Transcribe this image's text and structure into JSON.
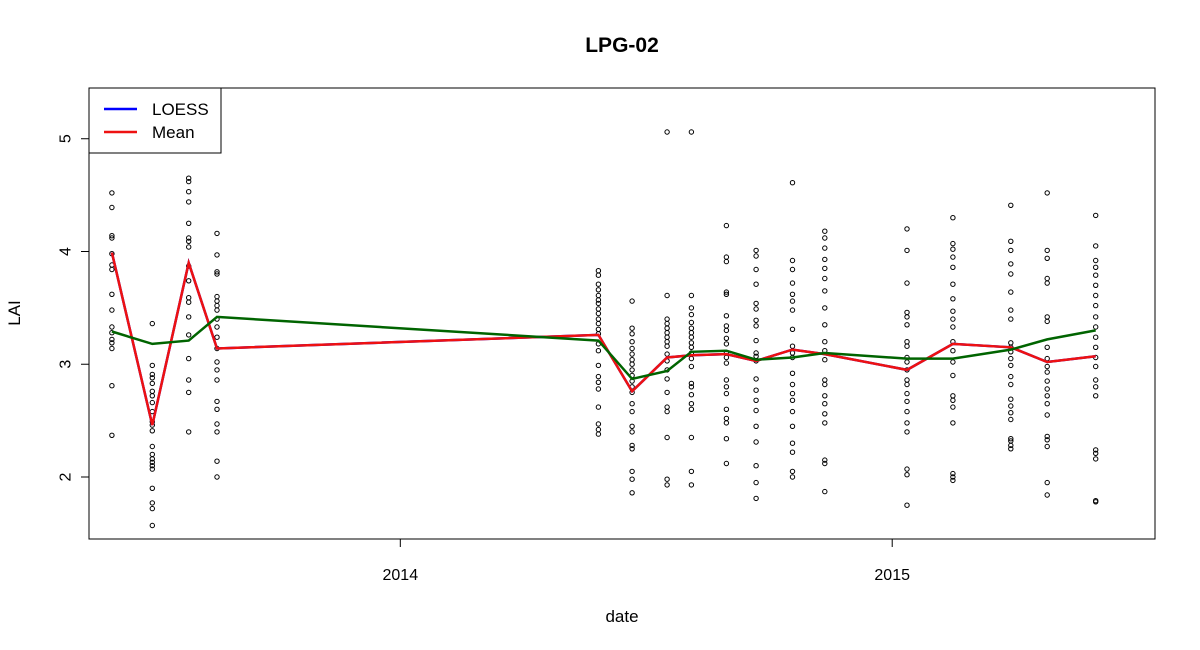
{
  "chart_data": {
    "type": "scatter",
    "title": "LPG-02",
    "xlabel": "date",
    "ylabel": "LAI",
    "xlim": [
      "2013-05-15",
      "2015-07-15"
    ],
    "ylim": [
      1.45,
      5.45
    ],
    "x_ticks": [
      {
        "date": "2014-01-01",
        "label": "2014"
      },
      {
        "date": "2015-01-01",
        "label": "2015"
      }
    ],
    "y_ticks": [
      {
        "value": 2,
        "label": "2"
      },
      {
        "value": 3,
        "label": "3"
      },
      {
        "value": 4,
        "label": "4"
      },
      {
        "value": 5,
        "label": "5"
      }
    ],
    "grid": false,
    "legend": {
      "placement": "top-left",
      "entries": [
        {
          "label": "LOESS",
          "color": "#0000ff"
        },
        {
          "label": "Mean",
          "color": "#ee1111"
        }
      ]
    },
    "colors": {
      "loess": "#0000ff",
      "mean": "#ee1111",
      "trend": "#006400",
      "points": "#000000"
    },
    "groups": [
      {
        "date": "2013-06-01",
        "values": [
          4.52,
          4.39,
          4.14,
          4.12,
          3.98,
          3.88,
          3.84,
          3.62,
          3.48,
          3.33,
          3.28,
          3.22,
          3.19,
          3.14,
          2.81,
          2.37
        ]
      },
      {
        "date": "2013-07-01",
        "values": [
          3.36,
          2.99,
          2.91,
          2.88,
          2.83,
          2.76,
          2.72,
          2.66,
          2.58,
          2.49,
          2.46,
          2.41,
          2.27,
          2.2,
          2.16,
          2.13,
          2.1,
          2.07,
          1.9,
          1.77,
          1.72,
          1.57
        ]
      },
      {
        "date": "2013-07-28",
        "values": [
          4.65,
          4.62,
          4.53,
          4.44,
          4.25,
          4.12,
          4.09,
          4.04,
          3.87,
          3.74,
          3.59,
          3.55,
          3.42,
          3.26,
          3.05,
          2.86,
          2.75,
          2.4
        ]
      },
      {
        "date": "2013-08-18",
        "values": [
          4.16,
          3.97,
          3.82,
          3.8,
          3.6,
          3.56,
          3.52,
          3.48,
          3.4,
          3.33,
          3.24,
          3.14,
          3.02,
          2.95,
          2.86,
          2.67,
          2.6,
          2.47,
          2.4,
          2.14,
          2.0
        ]
      },
      {
        "date": "2014-05-28",
        "values": [
          3.83,
          3.79,
          3.71,
          3.66,
          3.61,
          3.57,
          3.54,
          3.49,
          3.45,
          3.4,
          3.36,
          3.31,
          3.27,
          3.18,
          3.12,
          2.99,
          2.89,
          2.84,
          2.78,
          2.62,
          2.47,
          2.42,
          2.38
        ]
      },
      {
        "date": "2014-06-22",
        "values": [
          3.56,
          3.32,
          3.27,
          3.2,
          3.14,
          3.09,
          3.04,
          3.0,
          2.95,
          2.9,
          2.85,
          2.8,
          2.75,
          2.65,
          2.58,
          2.45,
          2.4,
          2.28,
          2.25,
          2.05,
          1.98,
          1.86
        ]
      },
      {
        "date": "2014-07-18",
        "values": [
          5.06,
          3.61,
          3.4,
          3.36,
          3.32,
          3.28,
          3.24,
          3.2,
          3.16,
          3.09,
          3.03,
          2.95,
          2.87,
          2.75,
          2.62,
          2.58,
          2.35,
          1.98,
          1.93
        ]
      },
      {
        "date": "2014-08-05",
        "values": [
          5.06,
          3.61,
          3.5,
          3.44,
          3.37,
          3.32,
          3.28,
          3.24,
          3.19,
          3.15,
          3.1,
          3.05,
          2.98,
          2.83,
          2.8,
          2.73,
          2.65,
          2.6,
          2.35,
          2.05,
          1.93
        ]
      },
      {
        "date": "2014-08-31",
        "values": [
          4.23,
          3.95,
          3.91,
          3.64,
          3.62,
          3.43,
          3.34,
          3.3,
          3.23,
          3.18,
          3.1,
          3.06,
          3.01,
          2.86,
          2.8,
          2.74,
          2.6,
          2.52,
          2.48,
          2.34,
          2.12
        ]
      },
      {
        "date": "2014-09-22",
        "values": [
          4.01,
          3.96,
          3.84,
          3.71,
          3.54,
          3.49,
          3.39,
          3.34,
          3.21,
          3.1,
          3.07,
          3.03,
          2.87,
          2.77,
          2.68,
          2.59,
          2.45,
          2.31,
          2.1,
          1.95,
          1.81
        ]
      },
      {
        "date": "2014-10-19",
        "values": [
          4.61,
          3.92,
          3.84,
          3.72,
          3.62,
          3.56,
          3.48,
          3.31,
          3.16,
          3.1,
          3.06,
          2.92,
          2.82,
          2.74,
          2.68,
          2.58,
          2.45,
          2.3,
          2.22,
          2.05,
          2.0
        ]
      },
      {
        "date": "2014-11-12",
        "values": [
          4.18,
          4.12,
          4.03,
          3.93,
          3.85,
          3.76,
          3.65,
          3.5,
          3.35,
          3.2,
          3.12,
          3.04,
          2.86,
          2.82,
          2.72,
          2.65,
          2.56,
          2.48,
          2.15,
          2.12,
          1.87
        ]
      },
      {
        "date": "2015-01-12",
        "values": [
          4.2,
          4.01,
          3.72,
          3.46,
          3.42,
          3.35,
          3.2,
          3.16,
          3.06,
          3.02,
          2.95,
          2.86,
          2.82,
          2.74,
          2.67,
          2.58,
          2.48,
          2.4,
          2.07,
          2.02,
          1.75
        ]
      },
      {
        "date": "2015-02-15",
        "values": [
          4.3,
          4.07,
          4.02,
          3.95,
          3.86,
          3.71,
          3.58,
          3.47,
          3.4,
          3.33,
          3.2,
          3.12,
          3.02,
          2.9,
          2.72,
          2.68,
          2.62,
          2.48,
          2.03,
          2.0,
          1.97
        ]
      },
      {
        "date": "2015-03-30",
        "values": [
          4.41,
          4.09,
          4.01,
          3.89,
          3.8,
          3.64,
          3.48,
          3.4,
          3.19,
          3.15,
          3.11,
          3.05,
          2.99,
          2.89,
          2.82,
          2.69,
          2.63,
          2.57,
          2.51,
          2.34,
          2.32,
          2.28,
          2.25
        ]
      },
      {
        "date": "2015-04-26",
        "values": [
          4.52,
          4.01,
          3.94,
          3.76,
          3.72,
          3.42,
          3.38,
          3.15,
          3.05,
          2.98,
          2.93,
          2.85,
          2.78,
          2.72,
          2.65,
          2.55,
          2.36,
          2.33,
          2.27,
          1.95,
          1.84
        ]
      },
      {
        "date": "2015-06-01",
        "values": [
          4.32,
          4.05,
          3.92,
          3.86,
          3.79,
          3.7,
          3.61,
          3.52,
          3.42,
          3.33,
          3.24,
          3.15,
          3.06,
          2.98,
          2.86,
          2.8,
          2.72,
          2.24,
          2.21,
          2.16,
          1.79,
          1.78
        ]
      }
    ],
    "series": [
      {
        "name": "LOESS",
        "color": "#0000ff",
        "x": [
          "2013-06-01",
          "2013-07-01",
          "2013-07-28",
          "2013-08-18",
          "2014-05-28",
          "2014-06-22",
          "2014-07-18",
          "2014-08-05",
          "2014-08-31",
          "2014-09-22",
          "2014-10-19",
          "2014-11-12",
          "2015-01-12",
          "2015-02-15",
          "2015-03-30",
          "2015-04-26",
          "2015-06-01"
        ],
        "y": [
          3.99,
          2.46,
          3.9,
          3.14,
          3.26,
          2.76,
          3.06,
          3.08,
          3.09,
          3.03,
          3.13,
          3.09,
          2.95,
          3.18,
          3.15,
          3.02,
          3.07
        ]
      },
      {
        "name": "Mean",
        "color": "#ee1111",
        "x": [
          "2013-06-01",
          "2013-07-01",
          "2013-07-28",
          "2013-08-18",
          "2014-05-28",
          "2014-06-22",
          "2014-07-18",
          "2014-08-05",
          "2014-08-31",
          "2014-09-22",
          "2014-10-19",
          "2014-11-12",
          "2015-01-12",
          "2015-02-15",
          "2015-03-30",
          "2015-04-26",
          "2015-06-01"
        ],
        "y": [
          3.99,
          2.46,
          3.9,
          3.14,
          3.26,
          2.76,
          3.06,
          3.08,
          3.09,
          3.03,
          3.13,
          3.09,
          2.95,
          3.18,
          3.15,
          3.02,
          3.07
        ]
      },
      {
        "color": "#006400",
        "x": [
          "2013-06-01",
          "2013-07-01",
          "2013-07-28",
          "2013-08-18",
          "2014-05-28",
          "2014-06-22",
          "2014-07-18",
          "2014-08-05",
          "2014-08-31",
          "2014-09-22",
          "2014-10-19",
          "2014-11-12",
          "2015-01-12",
          "2015-02-15",
          "2015-03-30",
          "2015-04-26",
          "2015-06-01"
        ],
        "y": [
          3.29,
          3.18,
          3.21,
          3.42,
          3.21,
          2.87,
          2.94,
          3.11,
          3.12,
          3.04,
          3.06,
          3.1,
          3.05,
          3.05,
          3.13,
          3.22,
          3.3
        ]
      }
    ]
  }
}
